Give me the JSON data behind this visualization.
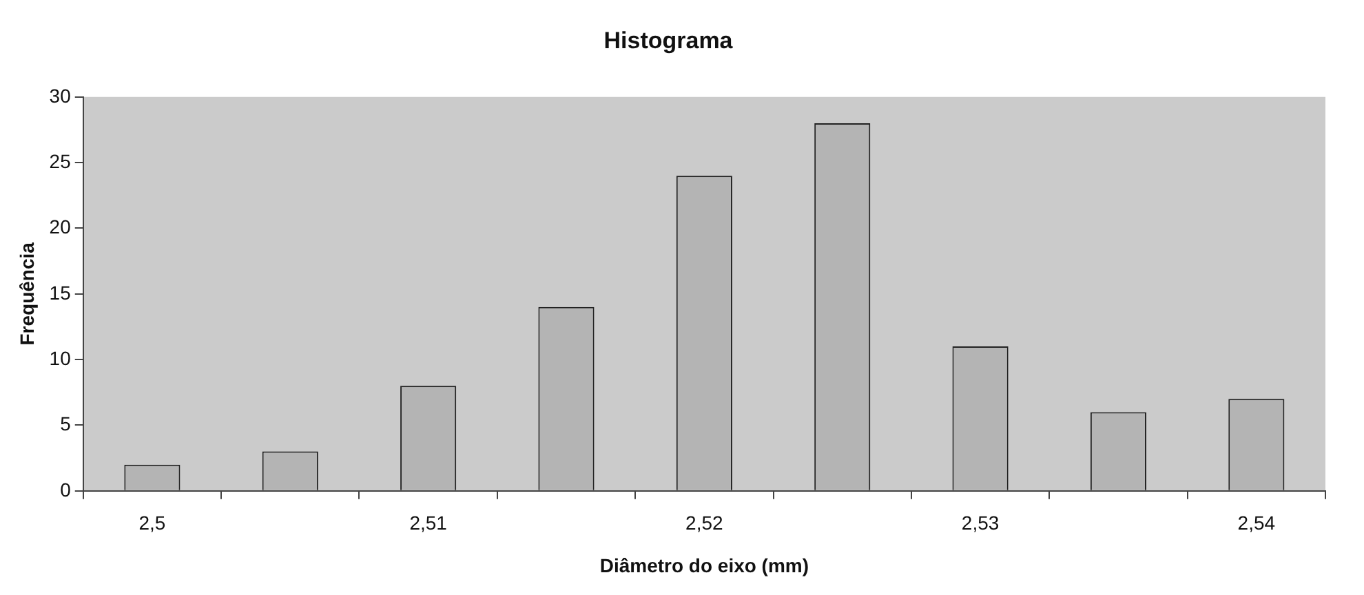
{
  "chart_data": {
    "type": "bar",
    "title": "Histograma",
    "xlabel": "Diâmetro do eixo (mm)",
    "ylabel": "Frequência",
    "categories": [
      "2,5",
      null,
      "2,51",
      null,
      "2,52",
      null,
      "2,53",
      null,
      "2,54"
    ],
    "values": [
      2,
      3,
      8,
      14,
      24,
      28,
      11,
      6,
      7
    ],
    "color": "#b4b4b4",
    "ylim": [
      0,
      30
    ],
    "yticks": [
      0,
      5,
      10,
      15,
      20,
      25,
      30
    ],
    "grid": false,
    "legend": false
  }
}
